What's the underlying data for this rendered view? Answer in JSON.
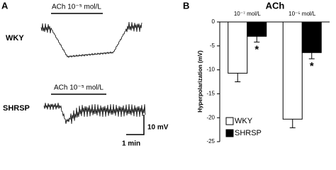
{
  "panel_a": {
    "label": "A",
    "stimulus": "ACh 10⁻⁵ mol/L",
    "traces": [
      "WKY",
      "SHRSP"
    ],
    "scale_y": "10 mV",
    "scale_x": "1 min"
  },
  "chart_data": {
    "type": "bar",
    "panel_label": "B",
    "title": "ACh",
    "categories": [
      "10⁻⁷ mol/L",
      "10⁻⁵ mol/L"
    ],
    "ylabel": "Hyperpolarization (mV)",
    "series": [
      {
        "name": "WKY",
        "color": "#ffffff",
        "values": [
          -10.7,
          -20.3
        ],
        "errors": [
          1.8,
          1.8
        ]
      },
      {
        "name": "SHRSP",
        "color": "#000000",
        "values": [
          -3,
          -6.4
        ],
        "errors": [
          1.2,
          1.3
        ],
        "marks": [
          "*",
          "*"
        ]
      }
    ],
    "ylim": [
      -25,
      0
    ],
    "yticks": [
      -25,
      -20,
      -15,
      -10,
      -5,
      0
    ],
    "legend": "lower left"
  }
}
